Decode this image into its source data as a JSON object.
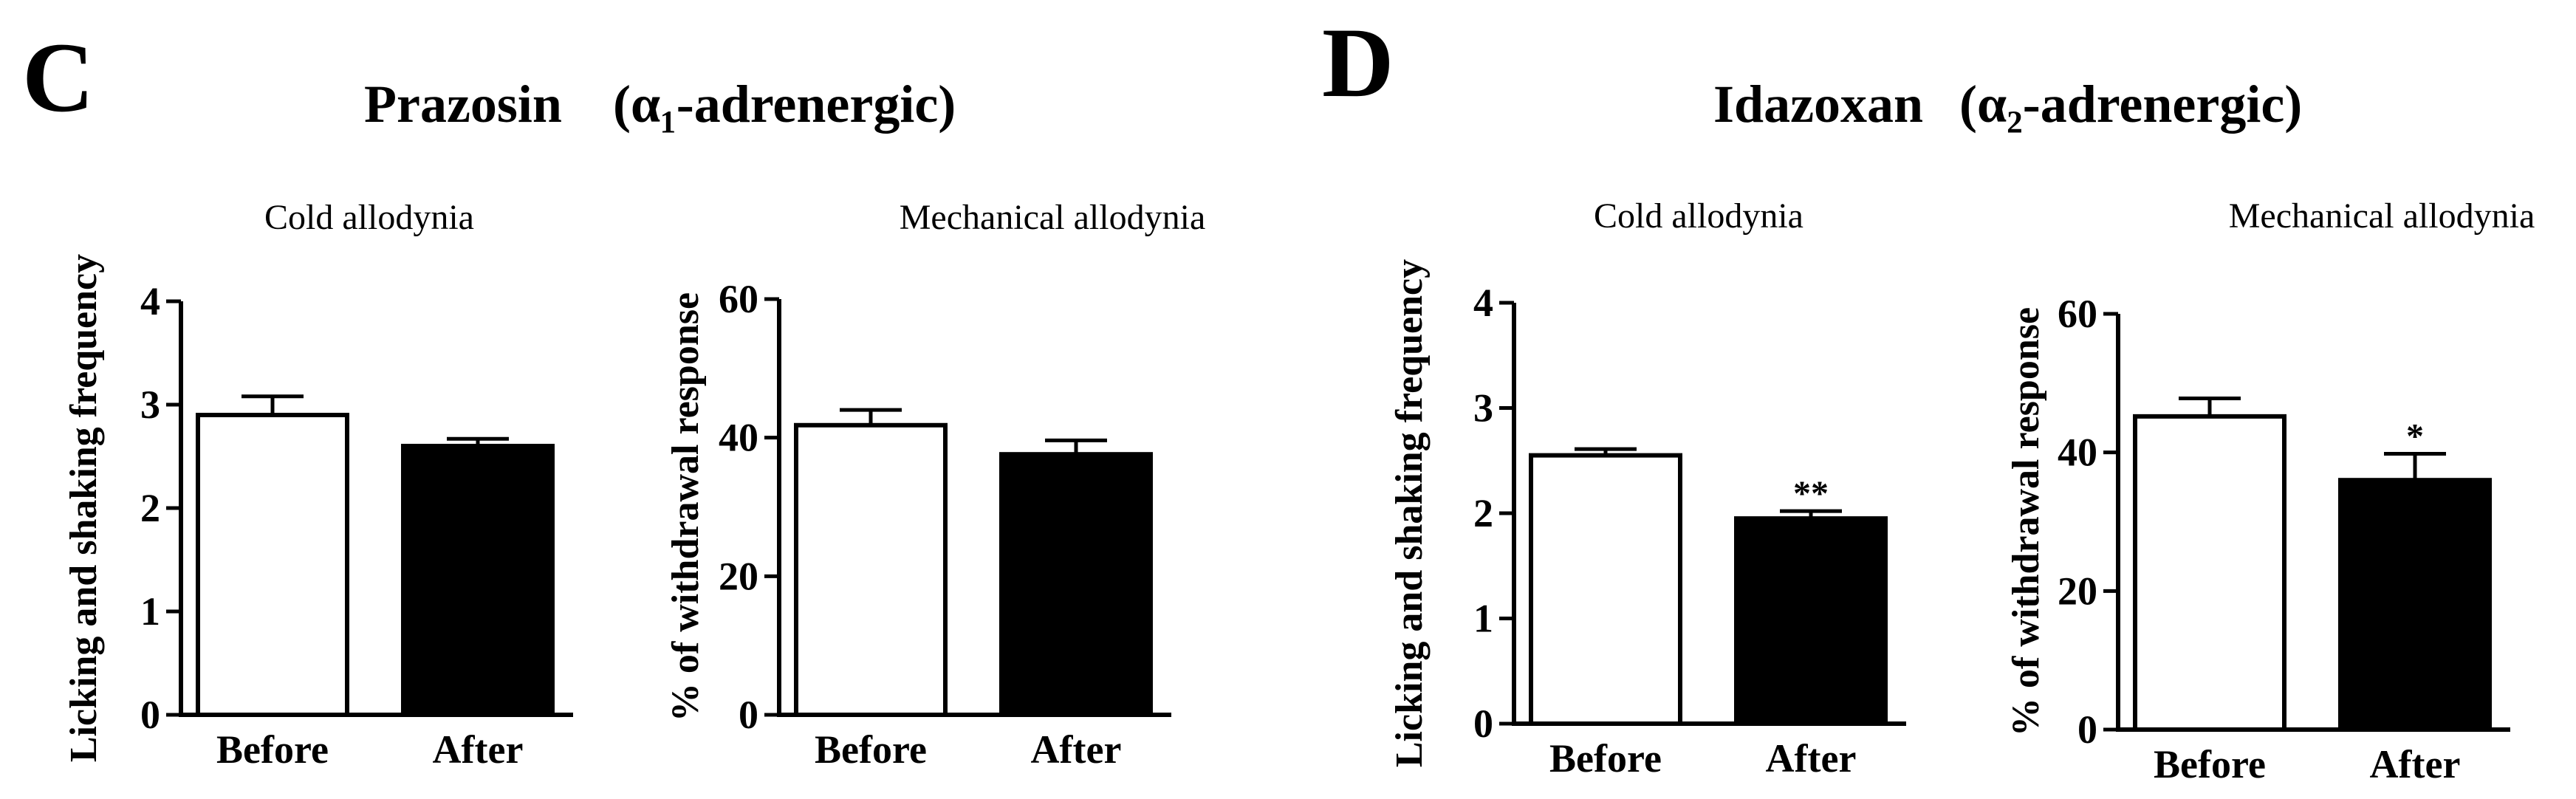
{
  "panels": [
    {
      "letter": "C",
      "title": "Prazosin",
      "subtitle": "(α₁-adrenergic)"
    },
    {
      "letter": "D",
      "title": "Idazoxan",
      "subtitle": "(α₂-adrenergic)"
    }
  ],
  "chart_data": [
    {
      "type": "bar",
      "title": "Cold allodynia",
      "xlabel": "",
      "ylabel": "Licking and shaking frequency",
      "categories": [
        "Before",
        "After"
      ],
      "values": [
        2.9,
        2.6
      ],
      "errors": [
        0.18,
        0.07
      ],
      "significance": [
        "",
        ""
      ],
      "bar_colors": [
        "#ffffff",
        "#000000"
      ],
      "ylim": [
        0,
        4
      ],
      "yticks": [
        "0",
        "1",
        "2",
        "3",
        "4"
      ],
      "ytick_values": [
        0,
        1,
        2,
        3,
        4
      ]
    },
    {
      "type": "bar",
      "title": "Mechanical allodynia",
      "xlabel": "",
      "ylabel": "% of withdrawal response",
      "categories": [
        "Before",
        "After"
      ],
      "values": [
        41.8,
        37.6
      ],
      "errors": [
        2.2,
        2.0
      ],
      "significance": [
        "",
        ""
      ],
      "bar_colors": [
        "#ffffff",
        "#000000"
      ],
      "ylim": [
        0,
        60
      ],
      "yticks": [
        "0",
        "20",
        "40",
        "60"
      ],
      "ytick_values": [
        0,
        20,
        40,
        60
      ]
    },
    {
      "type": "bar",
      "title": "Cold allodynia",
      "xlabel": "",
      "ylabel": "Licking and shaking frequency",
      "categories": [
        "Before",
        "After"
      ],
      "values": [
        2.55,
        1.95
      ],
      "errors": [
        0.06,
        0.07
      ],
      "significance": [
        "",
        "**"
      ],
      "bar_colors": [
        "#ffffff",
        "#000000"
      ],
      "ylim": [
        0,
        4
      ],
      "yticks": [
        "0",
        "1",
        "2",
        "3",
        "4"
      ],
      "ytick_values": [
        0,
        1,
        2,
        3,
        4
      ]
    },
    {
      "type": "bar",
      "title": "Mechanical allodynia",
      "xlabel": "",
      "ylabel": "% of withdrawal response",
      "categories": [
        "Before",
        "After"
      ],
      "values": [
        45.2,
        36.0
      ],
      "errors": [
        2.6,
        3.8
      ],
      "significance": [
        "",
        "*"
      ],
      "bar_colors": [
        "#ffffff",
        "#000000"
      ],
      "ylim": [
        0,
        60
      ],
      "yticks": [
        "0",
        "20",
        "40",
        "60"
      ],
      "ytick_values": [
        0,
        20,
        40,
        60
      ]
    }
  ]
}
